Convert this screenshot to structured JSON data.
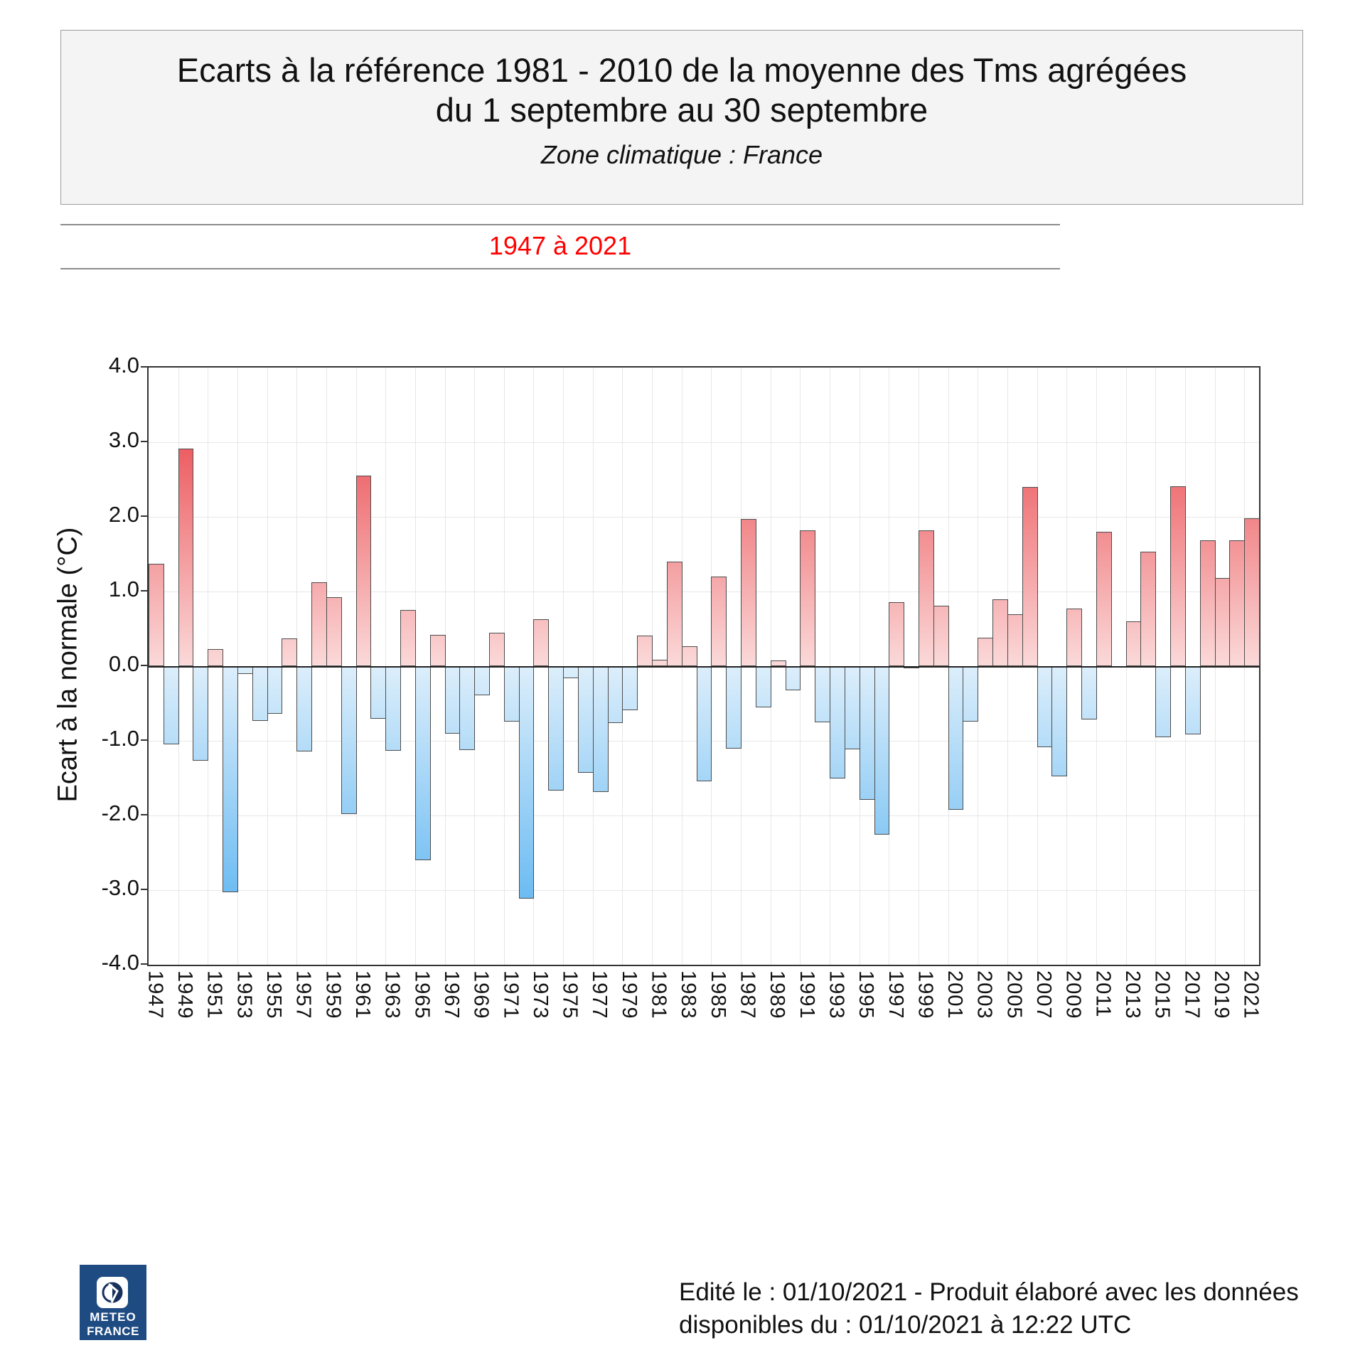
{
  "header": {
    "title_line1": "Ecarts à la référence 1981 - 2010 de la moyenne des Tms agrégées",
    "title_line2": "du 1 septembre au 30 septembre",
    "subtitle": "Zone climatique : France"
  },
  "period_banner": {
    "text": "1947 à 2021",
    "color": "#ff0000"
  },
  "chart_data": {
    "type": "bar",
    "title": "",
    "xlabel": "",
    "ylabel": "Ecart à la normale (°C)",
    "ylim": [
      -4.0,
      4.0
    ],
    "ytick_step": 1.0,
    "ytick_labels": [
      "4.0",
      "3.0",
      "2.0",
      "1.0",
      "0.0",
      "-1.0",
      "-2.0",
      "-3.0",
      "-4.0"
    ],
    "grid": true,
    "categories": [
      1947,
      1948,
      1949,
      1950,
      1951,
      1952,
      1953,
      1954,
      1955,
      1956,
      1957,
      1958,
      1959,
      1960,
      1961,
      1962,
      1963,
      1964,
      1965,
      1966,
      1967,
      1968,
      1969,
      1970,
      1971,
      1972,
      1973,
      1974,
      1975,
      1976,
      1977,
      1978,
      1979,
      1980,
      1981,
      1982,
      1983,
      1984,
      1985,
      1986,
      1987,
      1988,
      1989,
      1990,
      1991,
      1992,
      1993,
      1994,
      1995,
      1996,
      1997,
      1998,
      1999,
      2000,
      2001,
      2002,
      2003,
      2004,
      2005,
      2006,
      2007,
      2008,
      2009,
      2010,
      2011,
      2012,
      2013,
      2014,
      2015,
      2016,
      2017,
      2018,
      2019,
      2020,
      2021
    ],
    "values": [
      1.37,
      -1.05,
      2.91,
      -1.27,
      0.23,
      -3.03,
      -0.1,
      -0.73,
      -0.64,
      0.37,
      -1.14,
      1.12,
      0.92,
      -1.98,
      2.55,
      -0.7,
      -1.13,
      0.75,
      -2.6,
      0.42,
      -0.9,
      -1.12,
      -0.39,
      0.45,
      -0.74,
      -3.11,
      0.63,
      -1.67,
      -0.16,
      -1.43,
      -1.69,
      -0.76,
      -0.59,
      0.41,
      0.09,
      1.4,
      0.27,
      -1.54,
      1.2,
      -1.1,
      1.97,
      -0.55,
      0.08,
      -0.32,
      1.82,
      -0.75,
      -1.5,
      -1.11,
      -1.79,
      -2.26,
      0.86,
      -0.03,
      1.82,
      0.81,
      -1.92,
      -0.74,
      0.38,
      0.9,
      0.7,
      2.4,
      -1.09,
      -1.48,
      0.77,
      -0.71,
      1.8,
      0.0,
      0.6,
      1.53,
      -0.95,
      2.41,
      -0.91,
      1.69,
      1.18,
      1.69,
      1.98
    ],
    "xtick_years": [
      1947,
      1949,
      1951,
      1953,
      1955,
      1957,
      1959,
      1961,
      1963,
      1965,
      1967,
      1969,
      1971,
      1973,
      1975,
      1977,
      1979,
      1981,
      1983,
      1985,
      1987,
      1989,
      1991,
      1993,
      1995,
      1997,
      1999,
      2001,
      2003,
      2005,
      2007,
      2009,
      2011,
      2013,
      2015,
      2017,
      2019,
      2021
    ],
    "colors": {
      "positive_deep": "#e73036",
      "positive_pale": "#fbd9d9",
      "negative_deep": "#4badf0",
      "negative_pale": "#dceefb",
      "bar_border": "#4d4d4d",
      "grid": "#e7e7e7",
      "axis": "#333333"
    },
    "legend_position": "none"
  },
  "footer": {
    "logo": {
      "line1": "METEO",
      "line2": "FRANCE",
      "bg_color": "#1e4b82"
    },
    "edited_line1": "Edité le : 01/10/2021 - Produit élaboré avec les données",
    "edited_line2": "disponibles du : 01/10/2021 à 12:22 UTC"
  }
}
